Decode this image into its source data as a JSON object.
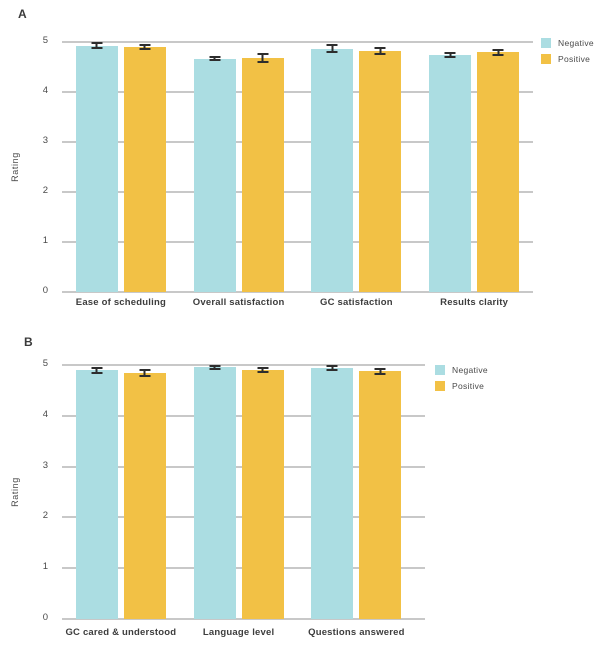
{
  "figure_title": "",
  "colors": {
    "negative": "#abdde2",
    "positive": "#f2c145",
    "gridline": "#c8c8c8",
    "error_bar": "#2d2d2d",
    "text": "#3f3f3f"
  },
  "legend": {
    "items": [
      {
        "label": "Negative",
        "color": "#abdde2"
      },
      {
        "label": "Positive",
        "color": "#f2c145"
      }
    ]
  },
  "chart_data": [
    {
      "type": "bar",
      "panel_label": "A",
      "title": "",
      "xlabel": "",
      "ylabel": "Rating",
      "ylim": [
        0,
        5
      ],
      "yticks": [
        0,
        1,
        2,
        3,
        4,
        5
      ],
      "grid": true,
      "legend_position": "right-top",
      "error_bars": true,
      "categories": [
        "Ease of scheduling",
        "Overall satisfaction",
        "GC satisfaction",
        "Results clarity"
      ],
      "series": [
        {
          "name": "Negative",
          "color": "#abdde2",
          "values": [
            4.93,
            4.67,
            4.87,
            4.75
          ],
          "errors": [
            0.04,
            0.02,
            0.06,
            0.03
          ]
        },
        {
          "name": "Positive",
          "color": "#f2c145",
          "values": [
            4.9,
            4.68,
            4.82,
            4.8
          ],
          "errors": [
            0.03,
            0.07,
            0.05,
            0.04
          ]
        }
      ]
    },
    {
      "type": "bar",
      "panel_label": "B",
      "title": "",
      "xlabel": "",
      "ylabel": "Rating",
      "ylim": [
        0,
        5
      ],
      "yticks": [
        0,
        1,
        2,
        3,
        4,
        5
      ],
      "grid": true,
      "legend_position": "right-top",
      "error_bars": true,
      "categories": [
        "GC cared & understood",
        "Language level",
        "Questions answered"
      ],
      "series": [
        {
          "name": "Negative",
          "color": "#abdde2",
          "values": [
            4.9,
            4.96,
            4.95
          ],
          "errors": [
            0.04,
            0.02,
            0.03
          ]
        },
        {
          "name": "Positive",
          "color": "#f2c145",
          "values": [
            4.84,
            4.91,
            4.88
          ],
          "errors": [
            0.05,
            0.03,
            0.04
          ]
        }
      ]
    }
  ]
}
